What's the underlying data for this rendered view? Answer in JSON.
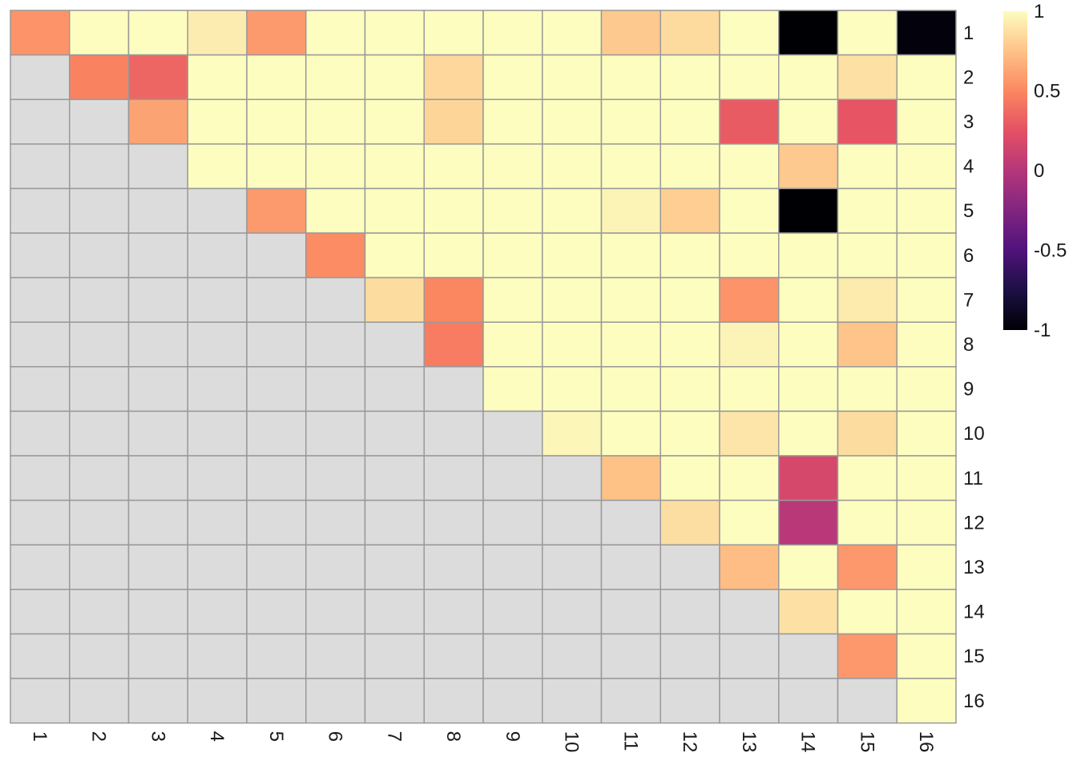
{
  "chart_data": {
    "type": "heatmap",
    "title": "",
    "xlabel": "",
    "ylabel": "",
    "row_labels": [
      "1",
      "2",
      "3",
      "4",
      "5",
      "6",
      "7",
      "8",
      "9",
      "10",
      "11",
      "12",
      "13",
      "14",
      "15",
      "16"
    ],
    "col_labels": [
      "1",
      "2",
      "3",
      "4",
      "5",
      "6",
      "7",
      "8",
      "9",
      "10",
      "11",
      "12",
      "13",
      "14",
      "15",
      "16"
    ],
    "values": [
      [
        0.55,
        1.0,
        1.0,
        0.93,
        0.58,
        1.0,
        1.0,
        1.0,
        1.0,
        1.0,
        0.78,
        0.85,
        1.0,
        -1.0,
        1.0,
        -0.97
      ],
      [
        null,
        0.48,
        0.35,
        1.0,
        1.0,
        1.0,
        1.0,
        0.84,
        1.0,
        1.0,
        1.0,
        1.0,
        1.0,
        1.0,
        0.88,
        1.0
      ],
      [
        null,
        null,
        0.62,
        1.0,
        1.0,
        1.0,
        1.0,
        0.83,
        1.0,
        1.0,
        1.0,
        1.0,
        0.3,
        1.0,
        0.27,
        1.0
      ],
      [
        null,
        null,
        null,
        1.0,
        1.0,
        1.0,
        1.0,
        1.0,
        1.0,
        1.0,
        1.0,
        1.0,
        1.0,
        0.78,
        1.0,
        1.0
      ],
      [
        null,
        null,
        null,
        null,
        0.58,
        1.0,
        1.0,
        1.0,
        1.0,
        1.0,
        0.96,
        0.8,
        1.0,
        -1.0,
        1.0,
        1.0
      ],
      [
        null,
        null,
        null,
        null,
        null,
        0.52,
        1.0,
        1.0,
        1.0,
        1.0,
        1.0,
        1.0,
        1.0,
        1.0,
        1.0,
        1.0
      ],
      [
        null,
        null,
        null,
        null,
        null,
        null,
        0.86,
        0.5,
        1.0,
        1.0,
        1.0,
        1.0,
        0.55,
        1.0,
        0.92,
        1.0
      ],
      [
        null,
        null,
        null,
        null,
        null,
        null,
        null,
        0.45,
        1.0,
        1.0,
        1.0,
        1.0,
        0.96,
        1.0,
        0.76,
        1.0
      ],
      [
        null,
        null,
        null,
        null,
        null,
        null,
        null,
        null,
        1.0,
        1.0,
        1.0,
        1.0,
        1.0,
        1.0,
        1.0,
        1.0
      ],
      [
        null,
        null,
        null,
        null,
        null,
        null,
        null,
        null,
        null,
        0.97,
        1.0,
        1.0,
        0.9,
        1.0,
        0.86,
        1.0
      ],
      [
        null,
        null,
        null,
        null,
        null,
        null,
        null,
        null,
        null,
        null,
        0.75,
        1.0,
        1.0,
        0.17,
        1.0,
        1.0
      ],
      [
        null,
        null,
        null,
        null,
        null,
        null,
        null,
        null,
        null,
        null,
        null,
        0.87,
        1.0,
        0.02,
        1.0,
        1.0
      ],
      [
        null,
        null,
        null,
        null,
        null,
        null,
        null,
        null,
        null,
        null,
        null,
        null,
        0.73,
        1.0,
        0.57,
        1.0
      ],
      [
        null,
        null,
        null,
        null,
        null,
        null,
        null,
        null,
        null,
        null,
        null,
        null,
        null,
        0.88,
        1.0,
        1.0
      ],
      [
        null,
        null,
        null,
        null,
        null,
        null,
        null,
        null,
        null,
        null,
        null,
        null,
        null,
        null,
        0.57,
        1.0
      ],
      [
        null,
        null,
        null,
        null,
        null,
        null,
        null,
        null,
        null,
        null,
        null,
        null,
        null,
        null,
        null,
        1.0
      ]
    ],
    "color_scale": {
      "name": "magma",
      "range": [
        -1,
        1
      ],
      "ticks": [
        "1",
        "0.5",
        "0",
        "-0.5",
        "-1"
      ],
      "tick_values": [
        1,
        0.5,
        0,
        -0.5,
        -1
      ]
    },
    "na_color": "#dcdcdc",
    "grid_color": "#999999",
    "legend_position": "right",
    "grid": true
  }
}
